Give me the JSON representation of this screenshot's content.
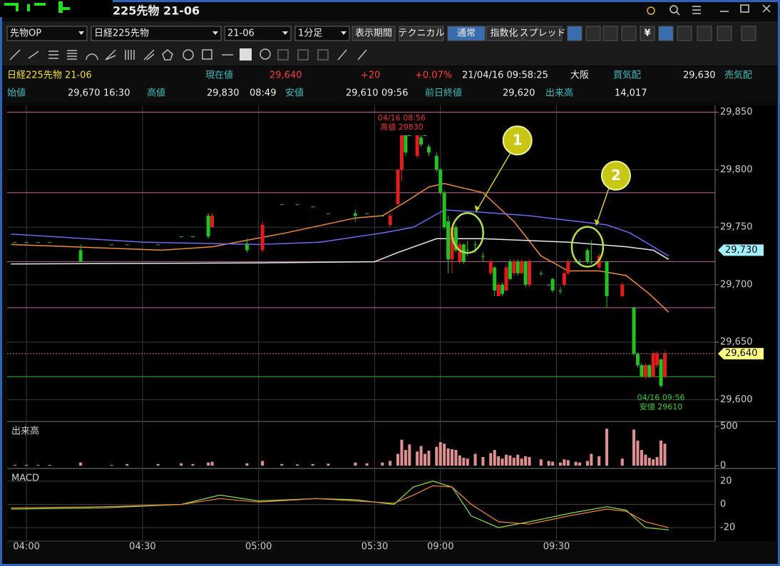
{
  "window": {
    "title": "225先物 21-06"
  },
  "toolbar": {
    "selects": [
      "先物OP",
      "日経225先物",
      "21-06",
      "1分足"
    ],
    "buttons": [
      "表示期間",
      "テクニカル",
      "通常",
      "指数化",
      "スプレッド"
    ],
    "active_button": 2,
    "icon_text": [
      "¥"
    ]
  },
  "quote_row": [
    "日経225先物 21-06",
    "現在値",
    "29,640",
    "+20",
    "+0.07%",
    "21/04/16  09:58:25",
    "大阪",
    "買気配",
    "29,630",
    "売気配"
  ],
  "ohlc_row": [
    "始値",
    "29,670",
    "16:30",
    "高値",
    "29,830",
    "08:49",
    "安値",
    "29,610",
    "09:56",
    "前日終値",
    "29,620",
    "出来高",
    "14,017"
  ],
  "chart_data": {
    "type": "candlestick",
    "up_color": "#e41c1c",
    "down_color": "#22c322",
    "xlim": [
      -5,
      178
    ],
    "xticks": [
      {
        "value": 0,
        "label": "04:00"
      },
      {
        "value": 30,
        "label": "04:30"
      },
      {
        "value": 60,
        "label": "05:00"
      },
      {
        "value": 90,
        "label": "05:30"
      },
      {
        "value": 107,
        "label": "09:00"
      },
      {
        "value": 137,
        "label": "09:30"
      }
    ],
    "ylim": [
      29581,
      29856
    ],
    "yticks": [
      {
        "value": 29600,
        "label": "29,600"
      },
      {
        "value": 29650,
        "label": "29,650"
      },
      {
        "value": 29700,
        "label": "29,700"
      },
      {
        "value": 29750,
        "label": "29,750"
      },
      {
        "value": 29800,
        "label": "29,800"
      },
      {
        "value": 29850,
        "label": "29,850"
      }
    ],
    "grid": true,
    "x": [
      -3,
      0,
      3,
      6,
      14,
      22,
      26,
      34,
      40,
      43,
      47,
      48,
      57,
      61,
      66,
      70,
      74,
      78,
      85,
      88,
      92,
      94,
      96,
      97,
      98,
      99,
      101,
      102,
      103,
      104,
      106,
      107,
      108,
      109,
      110,
      111,
      112,
      113,
      114,
      116,
      118,
      120,
      121,
      122,
      123,
      124,
      125,
      126,
      127,
      128,
      129,
      130,
      133,
      135,
      136,
      138,
      139,
      140,
      142,
      143,
      145,
      146,
      148,
      150,
      154,
      157,
      158,
      159,
      160,
      161,
      162,
      163,
      164,
      165
    ],
    "open": [
      29737,
      29737,
      29737,
      29737,
      29730,
      29735,
      29735,
      29735,
      29742,
      29742,
      29760,
      29750,
      29735,
      29730,
      29770,
      29770,
      29768,
      29762,
      29762,
      29762,
      29760,
      29752,
      29770,
      29800,
      29830,
      29830,
      29812,
      29828,
      29830,
      29820,
      29812,
      29800,
      29780,
      29755,
      29722,
      29750,
      29720,
      29735,
      29730,
      29735,
      29725,
      29710,
      29715,
      29690,
      29700,
      29695,
      29720,
      29710,
      29720,
      29710,
      29720,
      29700,
      29710,
      29700,
      29705,
      29695,
      29700,
      29710,
      29720,
      29720,
      29730,
      29720,
      29715,
      29720,
      29690,
      29680,
      29640,
      29630,
      29620,
      29630,
      29620,
      29630,
      29635,
      29620
    ],
    "high": [
      29737,
      29737,
      29737,
      29737,
      29735,
      29735,
      29735,
      29735,
      29742,
      29742,
      29762,
      29762,
      29740,
      29755,
      29770,
      29770,
      29768,
      29762,
      29765,
      29762,
      29760,
      29762,
      29800,
      29830,
      29830,
      29830,
      29830,
      29830,
      29830,
      29822,
      29815,
      29802,
      29782,
      29760,
      29752,
      29752,
      29738,
      29736,
      29738,
      29738,
      29728,
      29722,
      29716,
      29702,
      29702,
      29718,
      29722,
      29722,
      29722,
      29722,
      29721,
      29722,
      29712,
      29700,
      29706,
      29698,
      29712,
      29722,
      29720,
      29722,
      29732,
      29738,
      29727,
      29721,
      29702,
      29681,
      29641,
      29632,
      29632,
      29631,
      29642,
      29642,
      29636,
      29642
    ],
    "low": [
      29737,
      29737,
      29737,
      29737,
      29720,
      29735,
      29735,
      29735,
      29742,
      29742,
      29740,
      29750,
      29728,
      29728,
      29770,
      29770,
      29768,
      29762,
      29755,
      29762,
      29760,
      29750,
      29770,
      29790,
      29812,
      29830,
      29810,
      29820,
      29830,
      29812,
      29798,
      29778,
      29748,
      29710,
      29710,
      29728,
      29718,
      29718,
      29725,
      29728,
      29720,
      29708,
      29690,
      29690,
      29690,
      29694,
      29704,
      29708,
      29708,
      29709,
      29698,
      29698,
      29708,
      29700,
      29693,
      29692,
      29698,
      29708,
      29720,
      29718,
      29718,
      29718,
      29714,
      29680,
      29689,
      29638,
      29628,
      29620,
      29618,
      29619,
      29619,
      29628,
      29610,
      29619
    ],
    "close": [
      29737,
      29737,
      29737,
      29737,
      29720,
      29735,
      29735,
      29735,
      29742,
      29742,
      29742,
      29760,
      29730,
      29752,
      29770,
      29770,
      29768,
      29762,
      29760,
      29762,
      29760,
      29760,
      29800,
      29830,
      29815,
      29830,
      29830,
      29822,
      29830,
      29815,
      29800,
      29780,
      29750,
      29722,
      29750,
      29730,
      29735,
      29720,
      29730,
      29735,
      29725,
      29720,
      29695,
      29700,
      29692,
      29715,
      29705,
      29720,
      29710,
      29720,
      29700,
      29720,
      29710,
      29700,
      29695,
      29695,
      29710,
      29720,
      29720,
      29720,
      29720,
      29720,
      29725,
      29690,
      29700,
      29640,
      29630,
      29620,
      29630,
      29620,
      29640,
      29640,
      29612,
      29640
    ],
    "lines": [
      {
        "color": "#f08a3a",
        "x": [
          -4,
          35,
          48,
          67,
          85,
          92,
          98,
          104,
          108,
          118,
          126,
          133,
          140,
          148,
          155,
          161,
          166
        ],
        "values": [
          29735,
          29730,
          29733,
          29745,
          29758,
          29760,
          29772,
          29785,
          29788,
          29780,
          29755,
          29725,
          29712,
          29712,
          29708,
          29692,
          29676
        ]
      },
      {
        "color": "#6a6af0",
        "x": [
          -4,
          30,
          60,
          76,
          92,
          100,
          108,
          118,
          130,
          140,
          150,
          156,
          166
        ],
        "values": [
          29744,
          29737,
          29735,
          29737,
          29745,
          29750,
          29765,
          29763,
          29760,
          29756,
          29752,
          29745,
          29725
        ]
      },
      {
        "color": "#e8e8e8",
        "x": [
          -4,
          60,
          90,
          96,
          106,
          118,
          140,
          155,
          162,
          166
        ],
        "values": [
          29718,
          29719,
          29720,
          29728,
          29740,
          29740,
          29737,
          29733,
          29730,
          29722
        ]
      }
    ],
    "hlines": [
      {
        "value": 29850,
        "color": "#c060a0"
      },
      {
        "value": 29780,
        "color": "#c060a0"
      },
      {
        "value": 29720,
        "color": "#c060a0"
      },
      {
        "value": 29680,
        "color": "#c060a0"
      },
      {
        "value": 29640,
        "color": "#d07090",
        "dashed": true
      },
      {
        "value": 29620,
        "color": "#30c030"
      }
    ],
    "tags": [
      {
        "value": 29730,
        "label": "29,730",
        "color": "#a0f0ff"
      },
      {
        "value": 29640,
        "label": "29,640",
        "color": "#ffff80"
      }
    ],
    "annotations": [
      {
        "x": 97,
        "y": 29830,
        "lines": [
          "04/16 08:56",
          "高値 29830"
        ],
        "color": "#e83030",
        "side": "above"
      },
      {
        "x": 164,
        "y": 29610,
        "lines": [
          "04/16 09:56",
          "安値 29610"
        ],
        "color": "#30d030",
        "side": "below"
      }
    ],
    "callouts": [
      {
        "label": "1",
        "x": 114,
        "y": 29745
      },
      {
        "label": "2",
        "x": 145,
        "y": 29733
      }
    ],
    "volume": {
      "label": "出来高",
      "color": "#e09090",
      "ylim": [
        -36,
        545
      ],
      "yticks": [
        0,
        500
      ],
      "values": [
        10,
        10,
        10,
        10,
        40,
        10,
        20,
        20,
        30,
        20,
        40,
        50,
        30,
        60,
        20,
        15,
        20,
        25,
        40,
        30,
        40,
        60,
        150,
        330,
        200,
        270,
        180,
        250,
        150,
        190,
        240,
        300,
        280,
        220,
        210,
        200,
        130,
        100,
        90,
        150,
        110,
        160,
        200,
        120,
        90,
        140,
        130,
        100,
        140,
        90,
        120,
        110,
        80,
        60,
        50,
        40,
        80,
        70,
        50,
        40,
        60,
        150,
        120,
        470,
        90,
        460,
        320,
        200,
        140,
        100,
        80,
        110,
        320,
        280
      ]
    },
    "macd": {
      "label": "MACD",
      "ylim": [
        -31.6,
        29.7
      ],
      "yticks": [
        -20,
        0,
        20
      ],
      "series": [
        {
          "color": "#90e040",
          "x": [
            -4,
            20,
            40,
            50,
            60,
            75,
            85,
            95,
            100,
            105,
            110,
            115,
            122,
            130,
            140,
            150,
            155,
            160,
            166
          ],
          "values": [
            -4,
            -3,
            0,
            8,
            3,
            5,
            4,
            0,
            15,
            20,
            15,
            -10,
            -20,
            -15,
            -8,
            -2,
            -5,
            -20,
            -22
          ]
        },
        {
          "color": "#f08a3a",
          "x": [
            -4,
            20,
            40,
            50,
            60,
            75,
            85,
            95,
            100,
            105,
            110,
            115,
            122,
            130,
            140,
            150,
            155,
            160,
            166
          ],
          "values": [
            -3,
            -2,
            0,
            5,
            2,
            5,
            3,
            1,
            8,
            16,
            15,
            0,
            -15,
            -17,
            -10,
            -4,
            -6,
            -15,
            -20
          ]
        }
      ]
    }
  }
}
